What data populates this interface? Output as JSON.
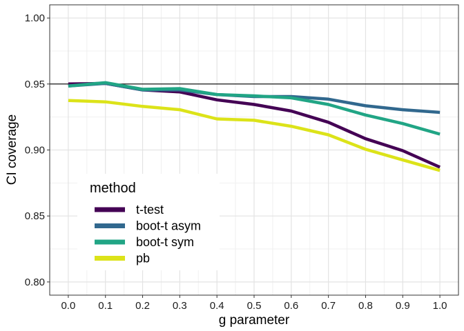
{
  "chart_data": {
    "type": "line",
    "title": "",
    "xlabel": "g parameter",
    "ylabel": "CI coverage",
    "x": [
      0.0,
      0.1,
      0.2,
      0.3,
      0.4,
      0.5,
      0.6,
      0.7,
      0.8,
      0.9,
      1.0
    ],
    "x_tick_labels": [
      "0.0",
      "0.1",
      "0.2",
      "0.3",
      "0.4",
      "0.5",
      "0.6",
      "0.7",
      "0.8",
      "0.9",
      "1.0"
    ],
    "y_ticks": [
      0.8,
      0.85,
      0.9,
      0.95,
      1.0
    ],
    "y_tick_labels": [
      "0.80",
      "0.85",
      "0.90",
      "0.95",
      "1.00"
    ],
    "xlim": [
      -0.05,
      1.05
    ],
    "ylim": [
      0.79,
      1.01
    ],
    "reference_line": 0.95,
    "grid": true,
    "legend": {
      "title": "method",
      "position": "bottom-left inside"
    },
    "series": [
      {
        "name": "t-test",
        "color": "#440154",
        "values": [
          0.95,
          0.9505,
          0.9455,
          0.944,
          0.938,
          0.9345,
          0.9295,
          0.921,
          0.9085,
          0.8995,
          0.887
        ]
      },
      {
        "name": "boot-t asym",
        "color": "#31688E",
        "values": [
          0.9485,
          0.9505,
          0.9455,
          0.9455,
          0.942,
          0.9405,
          0.9405,
          0.9385,
          0.9335,
          0.9305,
          0.9285
        ]
      },
      {
        "name": "boot-t sym",
        "color": "#21A585",
        "values": [
          0.9485,
          0.951,
          0.946,
          0.9465,
          0.942,
          0.941,
          0.9395,
          0.9345,
          0.9265,
          0.92,
          0.912
        ]
      },
      {
        "name": "pb",
        "color": "#DCE319",
        "values": [
          0.9375,
          0.9365,
          0.933,
          0.9305,
          0.9235,
          0.9225,
          0.918,
          0.9115,
          0.9005,
          0.8925,
          0.8845
        ]
      }
    ]
  }
}
